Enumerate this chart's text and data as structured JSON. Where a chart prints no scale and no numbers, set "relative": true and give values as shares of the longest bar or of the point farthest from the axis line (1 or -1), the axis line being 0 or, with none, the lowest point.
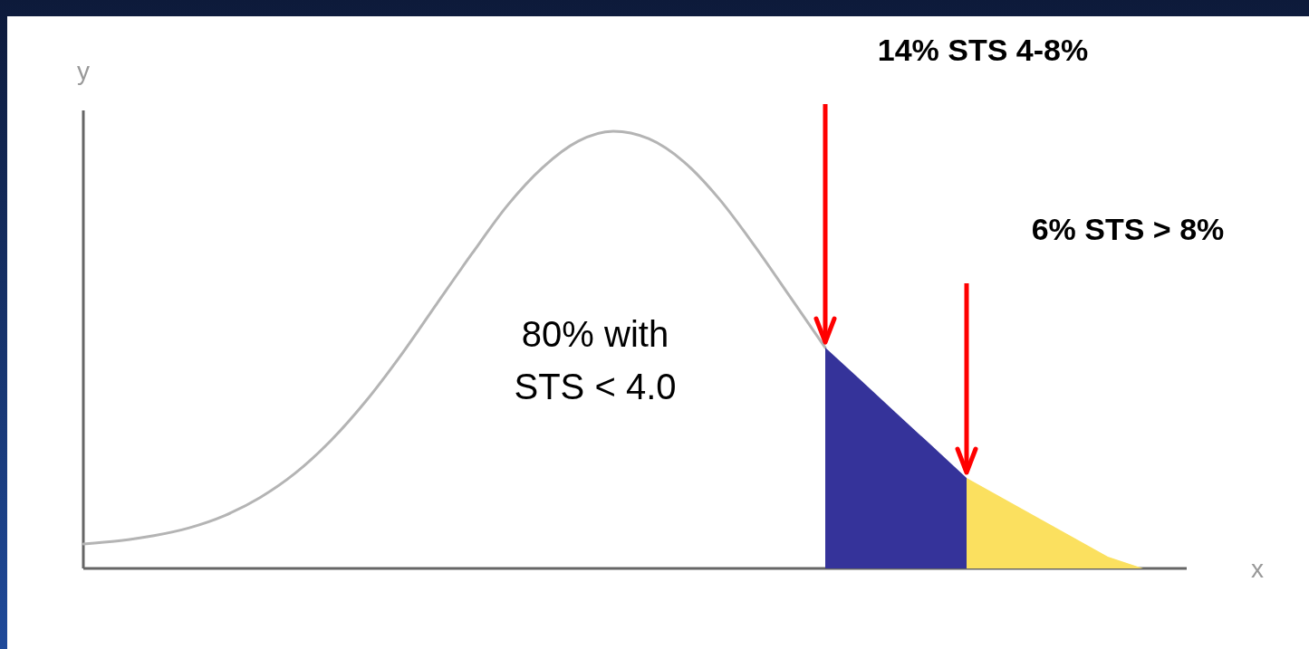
{
  "chart_data": {
    "type": "line",
    "relative": true,
    "xlabel": "x",
    "ylabel": "y",
    "categories": [
      null,
      null,
      null,
      null,
      null,
      null,
      null,
      null,
      null,
      null,
      null,
      null,
      null,
      null,
      null,
      null,
      null,
      null,
      null,
      null,
      null,
      null,
      null,
      null,
      null,
      null,
      null,
      null,
      null,
      null,
      null,
      null
    ],
    "series": [
      {
        "color": "#b4b4b4",
        "values": [
          0.056,
          0.063,
          0.075,
          0.093,
          0.121,
          0.162,
          0.218,
          0.292,
          0.383,
          0.489,
          0.605,
          0.72,
          0.83,
          0.917,
          0.977,
          1.0,
          0.983,
          0.93,
          0.845,
          0.738,
          0.622,
          0.505,
          null,
          null,
          null,
          null,
          null,
          null,
          null,
          null,
          null,
          null
        ]
      },
      {
        "type": "area",
        "color": "#35339a",
        "values": [
          null,
          null,
          null,
          null,
          null,
          null,
          null,
          null,
          null,
          null,
          null,
          null,
          null,
          null,
          null,
          null,
          null,
          null,
          null,
          null,
          null,
          0.505,
          0.431,
          0.356,
          0.282,
          0.207,
          null,
          null,
          null,
          null,
          null,
          null
        ]
      },
      {
        "type": "area",
        "color": "#fbe05f",
        "values": [
          null,
          null,
          null,
          null,
          null,
          null,
          null,
          null,
          null,
          null,
          null,
          null,
          null,
          null,
          null,
          null,
          null,
          null,
          null,
          null,
          null,
          null,
          null,
          null,
          null,
          0.207,
          0.162,
          0.117,
          0.072,
          0.027,
          0,
          null
        ]
      }
    ],
    "annotations": [
      "80% with STS < 4.0",
      "14% STS 4-8%",
      "6% STS > 8%"
    ]
  }
}
